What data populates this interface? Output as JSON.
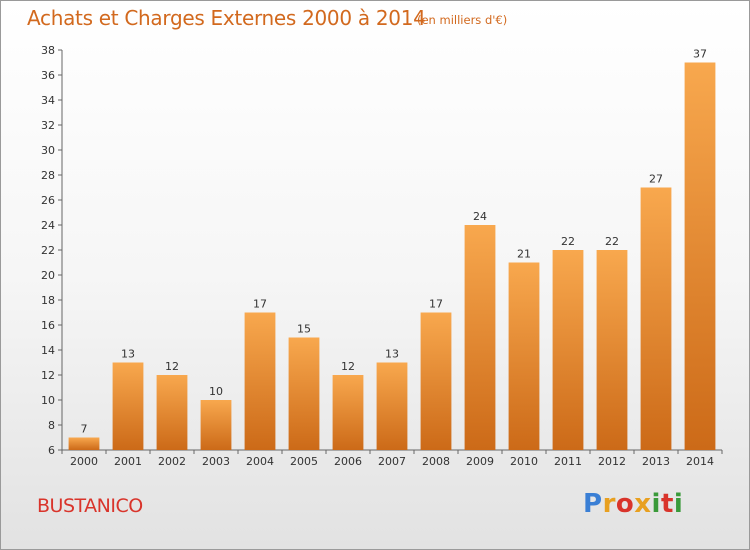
{
  "header": {
    "title": "Achats et Charges Externes 2000 à 2014",
    "unit": "(en milliers d'€)"
  },
  "footer": {
    "commune": "BUSTANICO",
    "logo_letters": [
      "P",
      "r",
      "o",
      "x",
      "i",
      "t",
      "i"
    ],
    "logo_colors": [
      "#3a7fd5",
      "#e8a020",
      "#d9342b",
      "#e8a020",
      "#3a9a3a",
      "#d9342b",
      "#3a9a3a"
    ]
  },
  "chart_data": {
    "type": "bar",
    "title": "Achats et Charges Externes 2000 à 2014",
    "subtitle": "(en milliers d'€)",
    "categories": [
      "2000",
      "2001",
      "2002",
      "2003",
      "2004",
      "2005",
      "2006",
      "2007",
      "2008",
      "2009",
      "2010",
      "2011",
      "2012",
      "2013",
      "2014"
    ],
    "values": [
      7,
      13,
      12,
      10,
      17,
      15,
      12,
      13,
      17,
      24,
      21,
      22,
      22,
      27,
      37
    ],
    "ylim": [
      6,
      38
    ],
    "yticks": [
      6,
      8,
      10,
      12,
      14,
      16,
      18,
      20,
      22,
      24,
      26,
      28,
      30,
      32,
      34,
      36,
      38
    ],
    "grid": false,
    "legend": "none",
    "bar_color_top": "#f8a84e",
    "bar_color_bottom": "#cc6a18",
    "label_color": "#333333"
  }
}
